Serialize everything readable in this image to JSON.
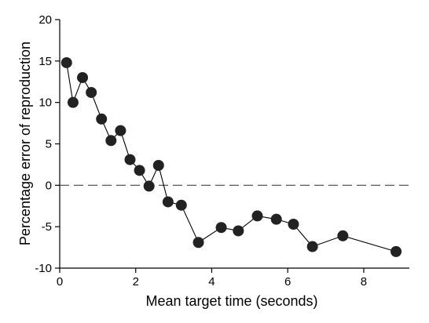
{
  "chart_data": {
    "type": "line",
    "title": "",
    "xlabel": "Mean target time (seconds)",
    "ylabel": "Percentage error of reproduction",
    "xlim": [
      0,
      9.2
    ],
    "ylim": [
      -10,
      20
    ],
    "xticks": [
      0,
      2,
      4,
      6,
      8
    ],
    "yticks": [
      -10,
      -5,
      0,
      5,
      10,
      15,
      20
    ],
    "xtick_labels": [
      "0",
      "2",
      "4",
      "6",
      "8"
    ],
    "ytick_labels": [
      "-10",
      "-5",
      "0",
      "5",
      "10",
      "15",
      "20"
    ],
    "reference_line": {
      "y": 0,
      "style": "dashed"
    },
    "grid": false,
    "marker_color": "#222222",
    "line_color": "#000000",
    "series": [
      {
        "x": [
          0.18,
          0.35,
          0.6,
          0.83,
          1.1,
          1.35,
          1.6,
          1.85,
          2.1,
          2.35,
          2.6,
          2.85,
          3.2,
          3.65,
          4.25,
          4.7,
          5.2,
          5.7,
          6.15,
          6.65,
          7.45,
          8.85
        ],
        "y": [
          14.8,
          10.0,
          13.0,
          11.2,
          8.0,
          5.4,
          6.6,
          3.1,
          1.8,
          -0.1,
          2.4,
          -2.0,
          -2.4,
          -6.9,
          -5.1,
          -5.5,
          -3.7,
          -4.1,
          -4.7,
          -7.4,
          -6.1,
          -8.0
        ]
      }
    ]
  }
}
